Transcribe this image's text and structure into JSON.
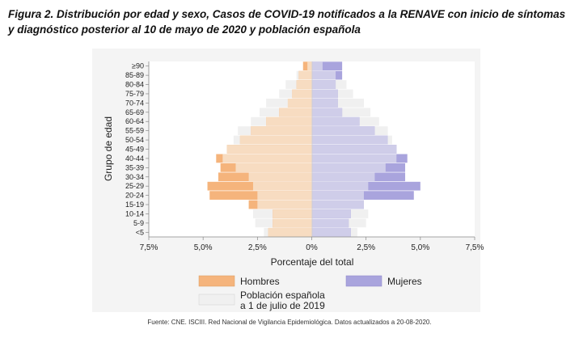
{
  "figure": {
    "title": "Figura 2. Distribución por edad y sexo, Casos de COVID-19 notificados a la RENAVE con inicio de síntomas y diagnóstico posterior al 10 de mayo de 2020 y población española",
    "source": "Fuente: CNE. ISCIII. Red Nacional de Vigilancia Epidemiológica. Datos actualizados a 20-08-2020."
  },
  "colors": {
    "hombres": "#f5b47c",
    "mujeres": "#a9a4dd",
    "poblacion": "#f0f0f0",
    "poblacion_hombres_overlay": "#f7dcc1",
    "poblacion_mujeres_overlay": "#cfcde9",
    "plot_bg": "#ffffff",
    "panel_bg": "#f4f4f4"
  },
  "chart_data": {
    "type": "bar",
    "orientation": "horizontal-population-pyramid",
    "ylabel": "Grupo de edad",
    "xlabel": "Porcentaje del total",
    "xlim": [
      -7.5,
      7.5
    ],
    "xticks": [
      -7.5,
      -5.0,
      -2.5,
      0,
      2.5,
      5.0,
      7.5
    ],
    "xtick_labels": [
      "7,5%",
      "5,0%",
      "2,5%",
      "0%",
      "2,5%",
      "5,0%",
      "7,5%"
    ],
    "grid": false,
    "legend_position": "bottom",
    "categories": [
      "<5",
      "5-9",
      "10-14",
      "15-19",
      "20-24",
      "25-29",
      "30-34",
      "35-39",
      "40-44",
      "45-49",
      "50-54",
      "55-59",
      "60-64",
      "65-69",
      "70-74",
      "75-79",
      "80-84",
      "85-89",
      "≥90"
    ],
    "series": [
      {
        "name": "Hombres",
        "side": "left",
        "values": [
          2.0,
          1.8,
          1.8,
          2.9,
          4.7,
          4.8,
          4.3,
          4.2,
          4.4,
          3.9,
          3.3,
          2.8,
          2.1,
          1.5,
          1.1,
          0.9,
          0.7,
          0.6,
          0.4
        ]
      },
      {
        "name": "Mujeres",
        "side": "right",
        "values": [
          1.8,
          1.7,
          1.8,
          2.4,
          4.7,
          5.0,
          4.3,
          4.3,
          4.4,
          3.9,
          3.5,
          2.9,
          2.2,
          1.4,
          1.2,
          1.2,
          1.1,
          1.4,
          1.4
        ]
      },
      {
        "name": "Población española a 1 de julio de 2019",
        "side": "both",
        "values_hombres": [
          2.2,
          2.6,
          2.7,
          2.5,
          2.5,
          2.7,
          2.9,
          3.5,
          4.1,
          3.9,
          3.6,
          3.4,
          2.8,
          2.4,
          2.1,
          1.5,
          1.2,
          0.7,
          0.2
        ],
        "values_mujeres": [
          2.1,
          2.5,
          2.6,
          2.4,
          2.4,
          2.6,
          2.9,
          3.4,
          3.9,
          3.9,
          3.7,
          3.5,
          3.1,
          2.7,
          2.4,
          1.9,
          1.6,
          1.1,
          0.5
        ]
      }
    ],
    "legend": [
      {
        "key": "hombres",
        "label": "Hombres"
      },
      {
        "key": "mujeres",
        "label": "Mujeres"
      },
      {
        "key": "poblacion",
        "label_line1": "Población española",
        "label_line2": "a 1 de julio de 2019"
      }
    ]
  }
}
